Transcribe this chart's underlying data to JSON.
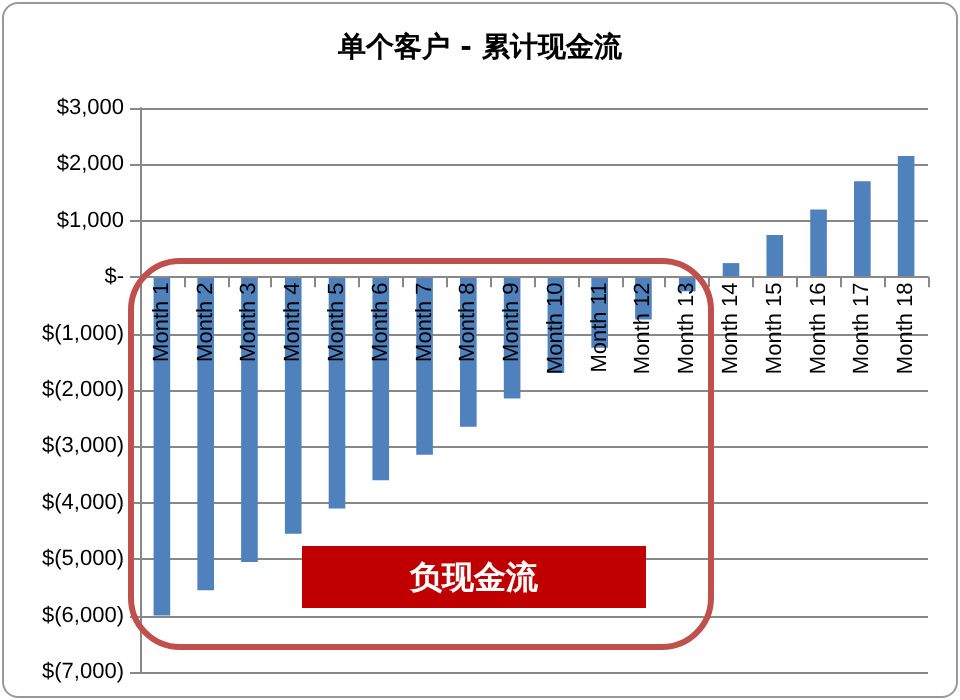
{
  "chart_data": {
    "type": "bar",
    "title": "单个客户 - 累计现金流",
    "categories": [
      "Month 1",
      "Month 2",
      "Month 3",
      "Month 4",
      "Month 5",
      "Month 6",
      "Month 7",
      "Month 8",
      "Month 9",
      "Month 10",
      "Month 11",
      "Month 12",
      "Month 13",
      "Month 14",
      "Month 15",
      "Month 16",
      "Month 17",
      "Month 18"
    ],
    "values": [
      -6000,
      -5550,
      -5050,
      -4550,
      -4100,
      -3600,
      -3150,
      -2650,
      -2150,
      -1700,
      -1250,
      -750,
      -250,
      250,
      750,
      1200,
      1700,
      2150
    ],
    "color": "#4f81bd",
    "ylim": [
      -7000,
      3000
    ],
    "yticks": [
      {
        "value": -7000,
        "label": "$(7,000)"
      },
      {
        "value": -6000,
        "label": "$(6,000)"
      },
      {
        "value": -5000,
        "label": "$(5,000)"
      },
      {
        "value": -4000,
        "label": "$(4,000)"
      },
      {
        "value": -3000,
        "label": "$(3,000)"
      },
      {
        "value": -2000,
        "label": "$(2,000)"
      },
      {
        "value": -1000,
        "label": "$(1,000)"
      },
      {
        "value": 0,
        "label": "$-"
      },
      {
        "value": 1000,
        "label": "$1,000"
      },
      {
        "value": 2000,
        "label": "$2,000"
      },
      {
        "value": 3000,
        "label": "$3,000"
      }
    ],
    "grid": "y",
    "annotations": [
      "负现金流"
    ]
  }
}
